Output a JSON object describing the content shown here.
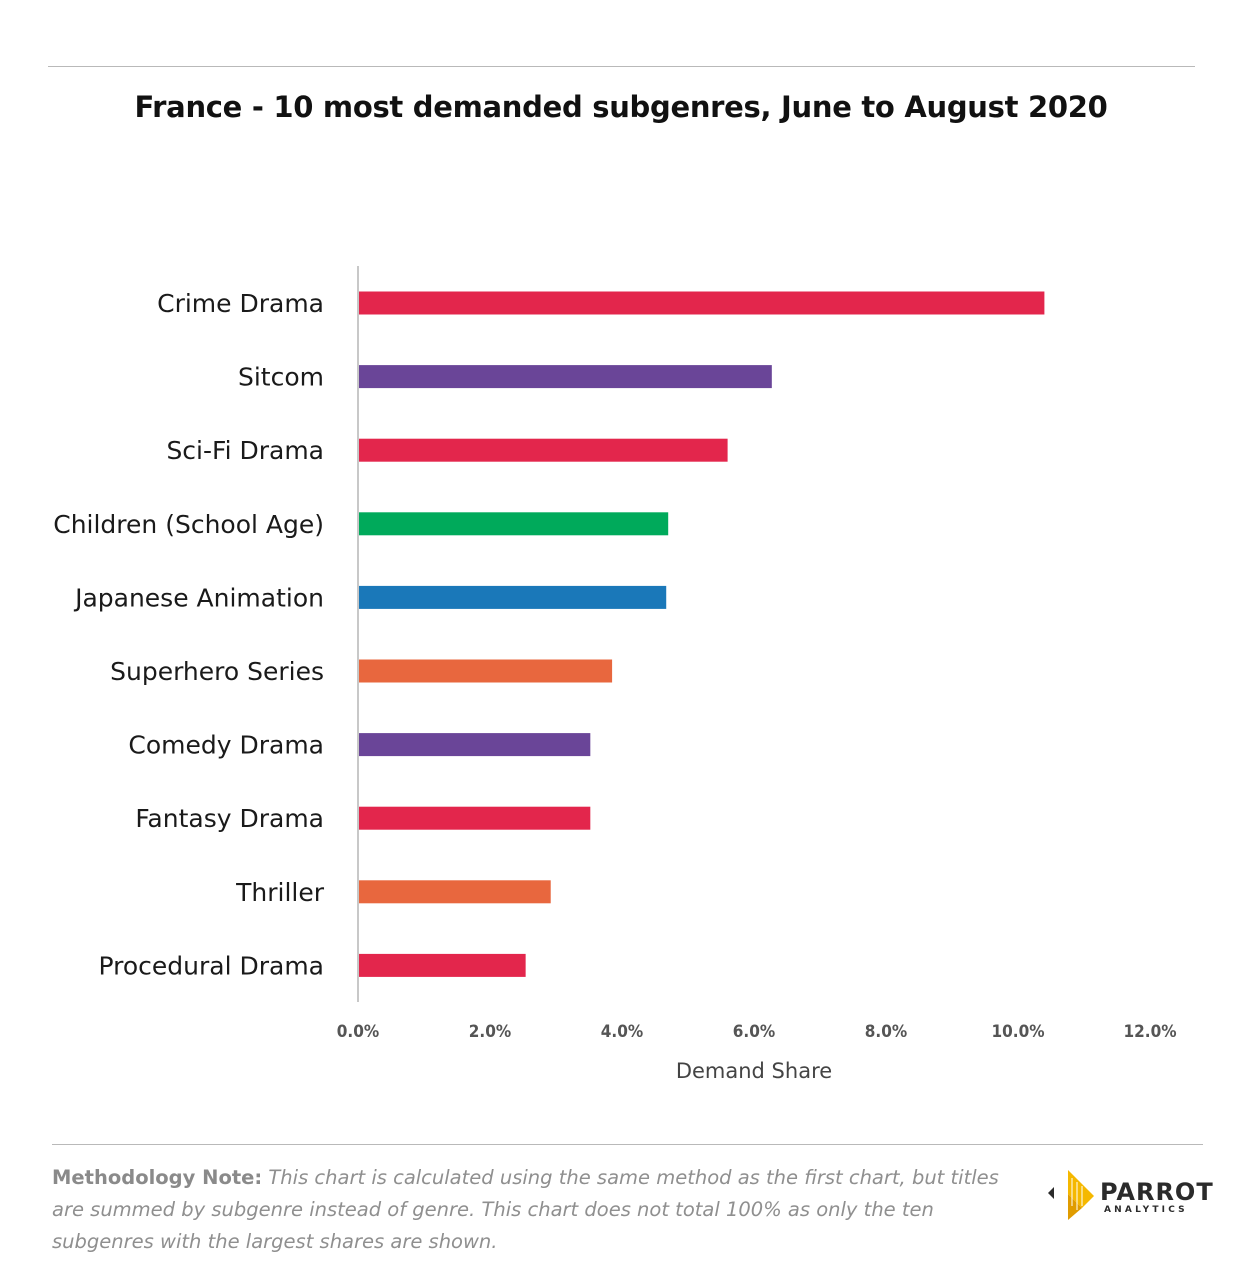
{
  "title": "France - 10 most demanded subgenres, June to August 2020",
  "chart_data": {
    "type": "bar",
    "orientation": "horizontal",
    "title": "France - 10 most demanded subgenres, June to August 2020",
    "xlabel": "Demand Share",
    "ylabel": "",
    "xlim": [
      0,
      12
    ],
    "x_ticks": [
      "0.0%",
      "2.0%",
      "4.0%",
      "6.0%",
      "8.0%",
      "10.0%",
      "12.0%"
    ],
    "grid": false,
    "categories": [
      "Crime Drama",
      "Sitcom",
      "Sci-Fi Drama",
      "Children (School Age)",
      "Japanese Animation",
      "Superhero Series",
      "Comedy Drama",
      "Fantasy Drama",
      "Thriller",
      "Procedural Drama"
    ],
    "values": [
      10.4,
      6.27,
      5.6,
      4.7,
      4.67,
      3.85,
      3.52,
      3.52,
      2.92,
      2.54
    ],
    "colors": [
      "#e3264c",
      "#6a4598",
      "#e3264c",
      "#00aa5b",
      "#1a78b9",
      "#e8673e",
      "#6a4598",
      "#e3264c",
      "#e8673e",
      "#e3264c"
    ]
  },
  "footer": {
    "note_lead": "Methodology Note:",
    "note_body": " This chart is calculated using the same method as the first chart, but titles are summed by subgenre instead of genre. This chart does not total 100% as only the ten subgenres with the largest shares are shown."
  },
  "logo": {
    "word": "PARROT",
    "sub": "ANALYTICS",
    "accent": "#f5b800"
  }
}
